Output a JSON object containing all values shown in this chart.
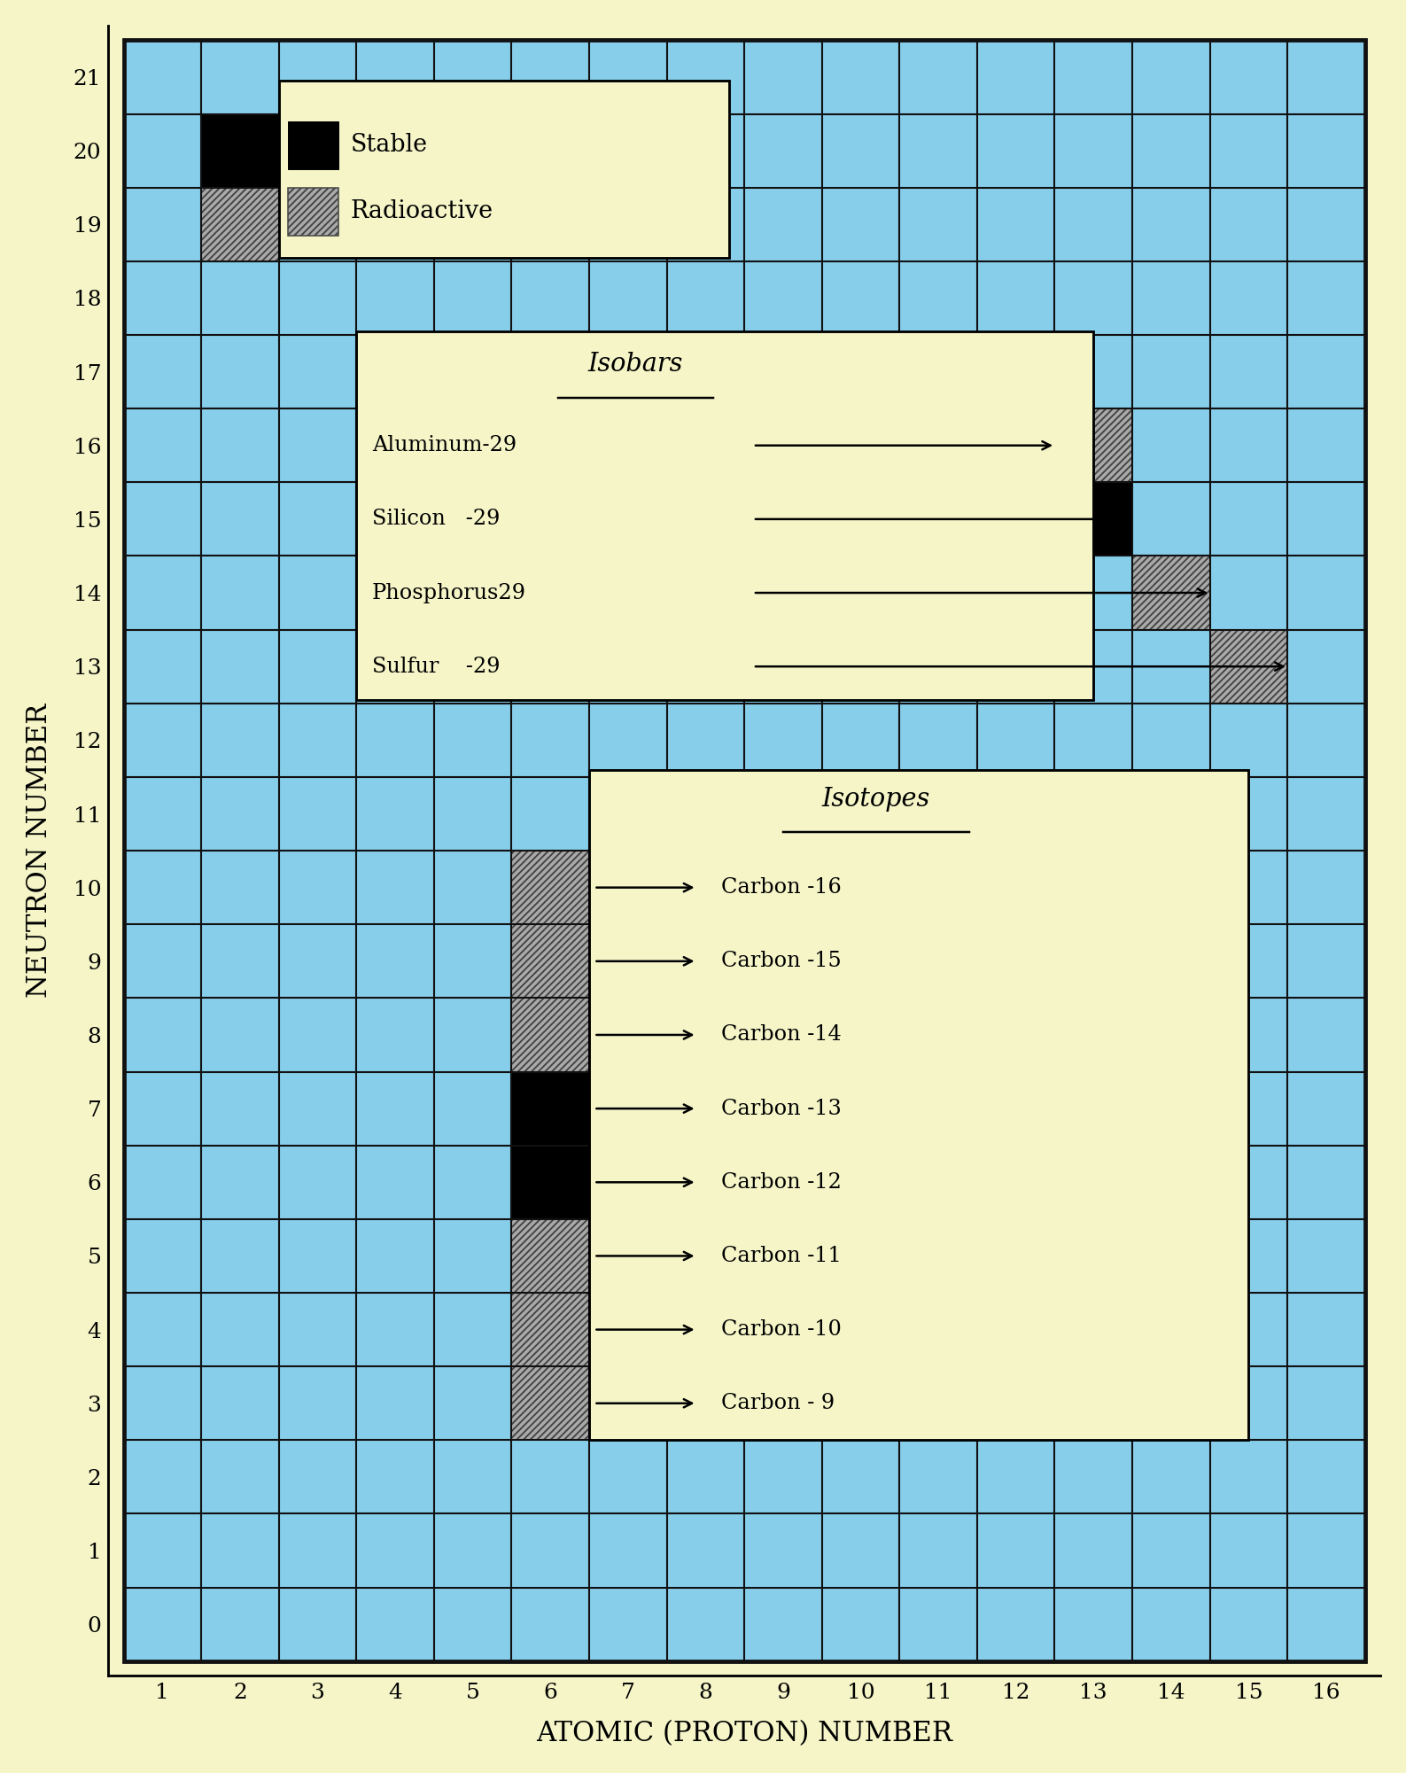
{
  "bg_color": "#F5F5C8",
  "cell_color": "#87CEEB",
  "grid_line_color": "#111111",
  "x_min": 1,
  "x_max": 16,
  "y_min": 0,
  "y_max": 21,
  "xlabel": "ATOMIC (PROTON) NUMBER",
  "ylabel": "NEUTRON NUMBER",
  "stable_cells": [
    [
      2,
      20
    ],
    [
      13,
      15
    ]
  ],
  "radioactive_cells": [
    [
      2,
      19
    ],
    [
      13,
      16
    ],
    [
      14,
      14
    ],
    [
      15,
      13
    ]
  ],
  "carbon_stable": [
    [
      6,
      6
    ],
    [
      6,
      7
    ]
  ],
  "carbon_radioactive": [
    [
      6,
      3
    ],
    [
      6,
      4
    ],
    [
      6,
      5
    ],
    [
      6,
      8
    ],
    [
      6,
      9
    ],
    [
      6,
      10
    ]
  ],
  "isobar_entries": [
    {
      "label": "Aluminum-29",
      "neutron": 16,
      "proton": 13
    },
    {
      "label": "Silicon   -29",
      "neutron": 15,
      "proton": 14
    },
    {
      "label": "Phosphorus29",
      "neutron": 14,
      "proton": 15
    },
    {
      "label": "Sulfur    -29",
      "neutron": 13,
      "proton": 16
    }
  ],
  "isotope_entries": [
    {
      "label": "Carbon -16",
      "neutron": 10
    },
    {
      "label": "Carbon -15",
      "neutron": 9
    },
    {
      "label": "Carbon -14",
      "neutron": 8
    },
    {
      "label": "Carbon -13",
      "neutron": 7
    },
    {
      "label": "Carbon -12",
      "neutron": 6
    },
    {
      "label": "Carbon -11",
      "neutron": 5
    },
    {
      "label": "Carbon -10",
      "neutron": 4
    },
    {
      "label": "Carbon - 9",
      "neutron": 3
    }
  ]
}
